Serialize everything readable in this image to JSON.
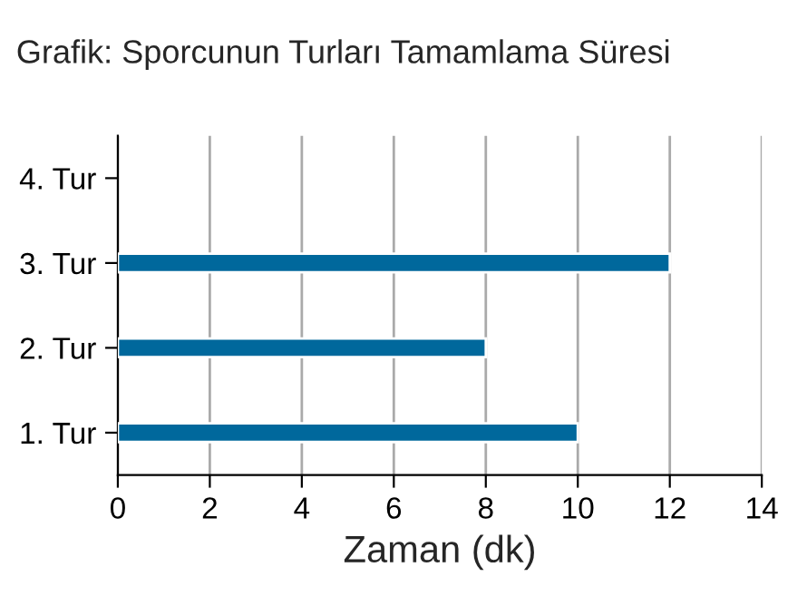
{
  "chart_data": {
    "type": "bar",
    "orientation": "horizontal",
    "title": "Grafik: Sporcunun Turları Tamamlama Süresi",
    "xlabel": "Zaman (dk)",
    "categories": [
      "4. Tur",
      "3. Tur",
      "2. Tur",
      "1. Tur"
    ],
    "values": [
      null,
      12,
      8,
      10
    ],
    "color": "#00689c",
    "xlim": [
      0,
      14
    ],
    "xticks": [
      0,
      2,
      4,
      6,
      8,
      10,
      12,
      14
    ],
    "grid": "x",
    "legend": false
  }
}
